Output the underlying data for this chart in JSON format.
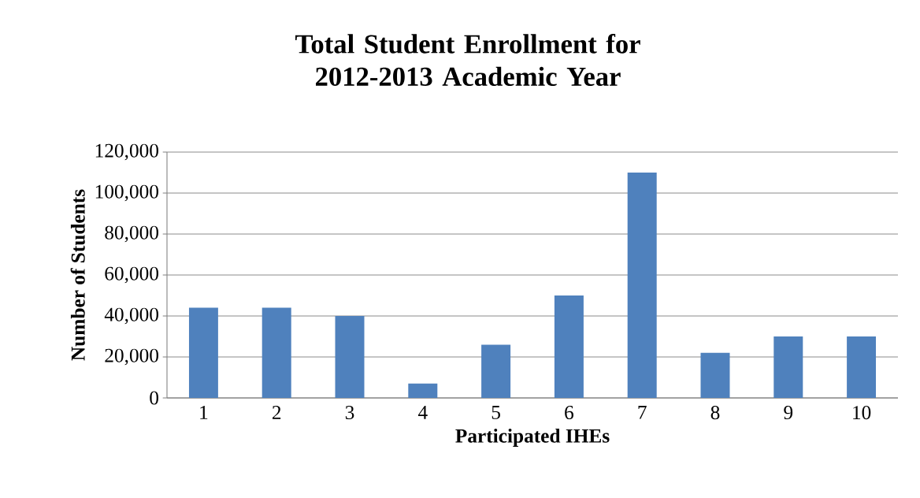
{
  "chart_data": {
    "type": "bar",
    "title": "Total Student Enrollment for 2012-2013 Academic Year",
    "xlabel": "Participated IHEs",
    "ylabel": "Number of Students",
    "categories": [
      "1",
      "2",
      "3",
      "4",
      "5",
      "6",
      "7",
      "8",
      "9",
      "10"
    ],
    "values": [
      44000,
      44000,
      40000,
      7000,
      26000,
      50000,
      110000,
      22000,
      30000,
      30000
    ],
    "color": "#4f81bd",
    "ylim": [
      0,
      120000
    ],
    "yticks": [
      {
        "value": 0,
        "label": "0"
      },
      {
        "value": 20000,
        "label": "20,000"
      },
      {
        "value": 40000,
        "label": "40,000"
      },
      {
        "value": 60000,
        "label": "60,000"
      },
      {
        "value": 80000,
        "label": "80,000"
      },
      {
        "value": 100000,
        "label": "100,000"
      },
      {
        "value": 120000,
        "label": "120,000"
      }
    ],
    "grid": "y"
  }
}
